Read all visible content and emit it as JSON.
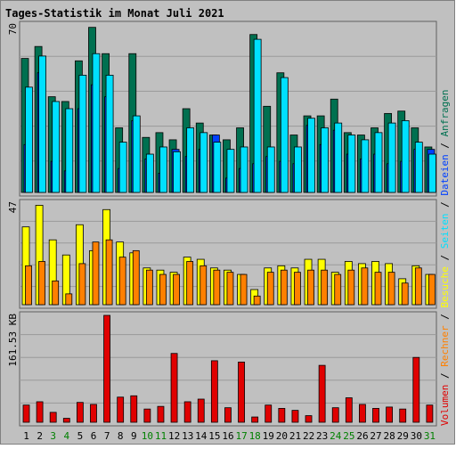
{
  "title": "Tages-Statistik im Monat Juli 2021",
  "colors": {
    "background": "#c0c0c0",
    "title": "#0000ff",
    "anfragen": "#007050",
    "dateien": "#0040ff",
    "seiten": "#00e0ff",
    "besuche": "#ffff00",
    "rechner": "#ff8000",
    "volumen": "#e00000",
    "weekday_label": "#000000",
    "weekend_label": "#008000"
  },
  "y_axis": {
    "top_max_label": "70",
    "mid_max_label": "47",
    "bottom_max_label": "161.53 KB"
  },
  "legend_right": [
    {
      "text": "Volumen",
      "color_key": "volumen"
    },
    {
      "text": "Rechner",
      "color_key": "rechner"
    },
    {
      "text": "Besuche",
      "color_key": "besuche"
    },
    {
      "text": "Seiten",
      "color_key": "seiten"
    },
    {
      "text": "Dateien",
      "color_key": "dateien"
    },
    {
      "text": "Anfragen",
      "color_key": "anfragen"
    }
  ],
  "chart_data": {
    "type": "bar",
    "title": "Tages-Statistik im Monat Juli 2021",
    "categories": [
      "1",
      "2",
      "3",
      "4",
      "5",
      "6",
      "7",
      "8",
      "9",
      "10",
      "11",
      "12",
      "13",
      "14",
      "15",
      "16",
      "17",
      "18",
      "19",
      "20",
      "21",
      "22",
      "23",
      "24",
      "25",
      "26",
      "27",
      "28",
      "29",
      "30",
      "31"
    ],
    "weekend_days": [
      3,
      4,
      10,
      11,
      17,
      18,
      24,
      25,
      31
    ],
    "panels": [
      {
        "id": "top",
        "ylim": [
          0,
          70
        ],
        "series": [
          {
            "name": "Anfragen",
            "color_key": "anfragen",
            "values": [
              56,
              61,
              40,
              38,
              55,
              69,
              58,
              27,
              58,
              23,
              25,
              22,
              35,
              29,
              24,
              22,
              27,
              66,
              36,
              50,
              24,
              32,
              32,
              39,
              25,
              24,
              27,
              33,
              34,
              27,
              19
            ]
          },
          {
            "name": "Dateien",
            "color_key": "dateien",
            "values": [
              20,
              50,
              13,
              9,
              35,
              45,
              40,
              10,
              30,
              14,
              8,
              18,
              15,
              18,
              24,
              6,
              10,
              12,
              15,
              13,
              12,
              28,
              20,
              26,
              16,
              14,
              16,
              12,
              13,
              18,
              18
            ]
          },
          {
            "name": "Seiten",
            "color_key": "seiten",
            "values": [
              44,
              57,
              38,
              35,
              49,
              58,
              49,
              21,
              32,
              16,
              19,
              17,
              27,
              25,
              21,
              18,
              19,
              64,
              19,
              48,
              19,
              31,
              27,
              29,
              24,
              22,
              25,
              29,
              30,
              21,
              16
            ]
          }
        ]
      },
      {
        "id": "middle",
        "ylim": [
          0,
          47
        ],
        "series": [
          {
            "name": "Besuche",
            "color_key": "besuche",
            "values": [
              36,
              46,
              30,
              23,
              37,
              25,
              44,
              29,
              24,
              17,
              16,
              15,
              22,
              21,
              17,
              16,
              14,
              7,
              17,
              18,
              17,
              21,
              21,
              15,
              20,
              19,
              20,
              19,
              12,
              18,
              14
            ]
          },
          {
            "name": "Rechner",
            "color_key": "rechner",
            "values": [
              18,
              20,
              11,
              5,
              19,
              29,
              30,
              22,
              25,
              16,
              14,
              14,
              20,
              18,
              16,
              15,
              14,
              4,
              15,
              16,
              15,
              16,
              16,
              14,
              16,
              17,
              15,
              15,
              10,
              17,
              14
            ]
          }
        ]
      },
      {
        "id": "bottom",
        "ylim": [
          0,
          161.53
        ],
        "unit": "KB",
        "series": [
          {
            "name": "Volumen",
            "color_key": "volumen",
            "values": [
              26,
              31,
              15,
              6,
              30,
              27,
              161.53,
              38,
              40,
              20,
              24,
              104,
              31,
              35,
              93,
              22,
              91,
              8,
              26,
              21,
              18,
              10,
              86,
              22,
              37,
              27,
              21,
              23,
              20,
              98,
              26
            ]
          }
        ]
      }
    ]
  }
}
